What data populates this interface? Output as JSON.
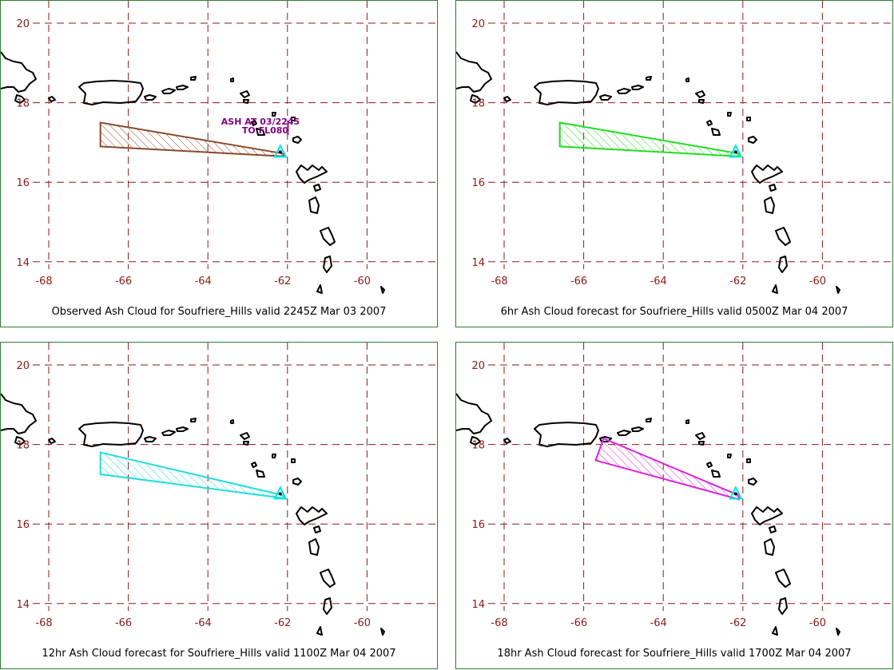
{
  "colors": {
    "grid": "#8b1a1a",
    "coast": "#000000",
    "frame": "#2e7d32",
    "volcano": "#00e5e5",
    "annotation": "#800080"
  },
  "axes": {
    "lat_ticks": [
      "20",
      "18",
      "16",
      "14"
    ],
    "lon_ticks": [
      "-68",
      "-66",
      "-64",
      "-62",
      "-60"
    ]
  },
  "panels": [
    {
      "caption": "Observed Ash Cloud for Soufriere_Hills valid 2245Z Mar 03 2007",
      "color": "#8b4a2b",
      "annotation": [
        "ASH AT 03/2245",
        "TO FL080"
      ],
      "polygon": [
        [
          -66.7,
          17.5
        ],
        [
          -62.1,
          16.72
        ],
        [
          -62.1,
          16.65
        ],
        [
          -66.7,
          16.9
        ]
      ]
    },
    {
      "caption": "6hr Ash Cloud forecast for Soufriere_Hills valid 0500Z Mar 04 2007",
      "color": "#22dd22",
      "annotation": [],
      "polygon": [
        [
          -66.6,
          17.5
        ],
        [
          -62.1,
          16.72
        ],
        [
          -62.1,
          16.65
        ],
        [
          -66.6,
          16.9
        ]
      ]
    },
    {
      "caption": "12hr Ash Cloud forecast for Soufriere_Hills valid 1100Z Mar 04 2007",
      "color": "#22dddd",
      "annotation": [],
      "polygon": [
        [
          -66.7,
          17.8
        ],
        [
          -62.1,
          16.72
        ],
        [
          -62.1,
          16.65
        ],
        [
          -66.7,
          17.25
        ]
      ]
    },
    {
      "caption": "18hr Ash Cloud forecast for Soufriere_Hills valid 1700Z Mar 04 2007",
      "color": "#dd22dd",
      "annotation": [],
      "polygon": [
        [
          -65.5,
          18.15
        ],
        [
          -62.1,
          16.72
        ],
        [
          -62.1,
          16.62
        ],
        [
          -65.7,
          17.6
        ]
      ]
    }
  ],
  "volcano": {
    "lon": -62.18,
    "lat": 16.72
  }
}
